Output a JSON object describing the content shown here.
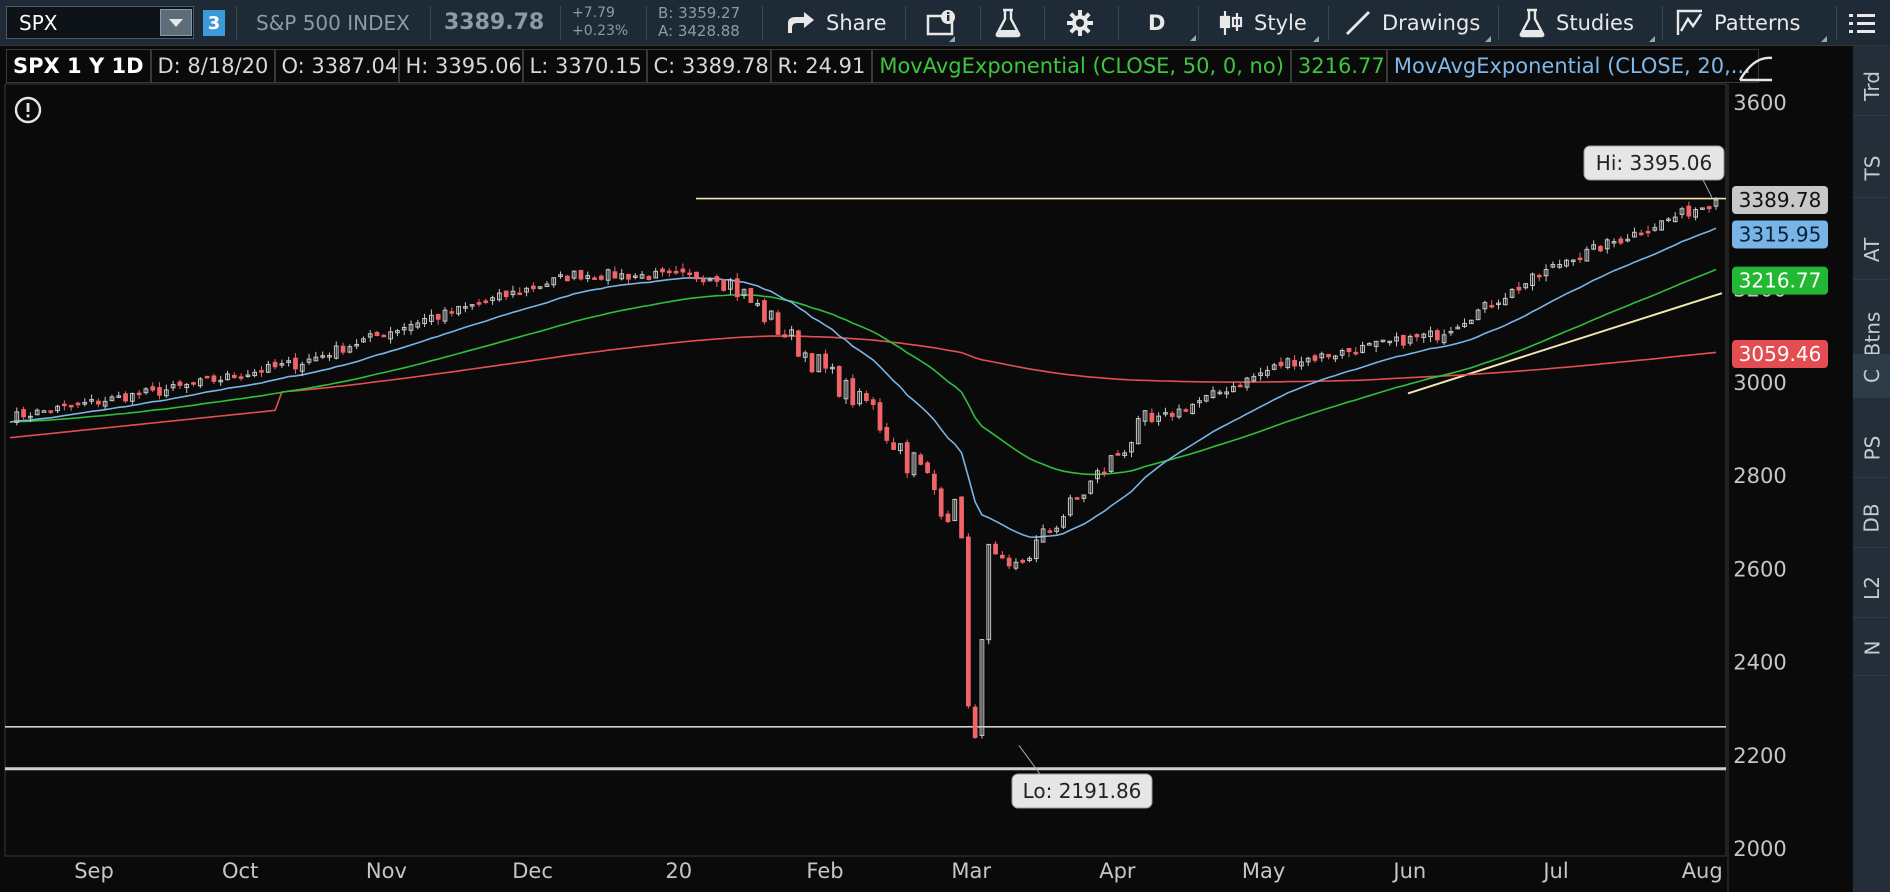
{
  "toolbar": {
    "symbol": "SPX",
    "link_number": "3",
    "index_name": "S&P 500 INDEX",
    "last_price": "3389.78",
    "change": "+7.79",
    "change_pct": "+0.23%",
    "bid": "B: 3359.27",
    "ask": "A: 3428.88",
    "share_label": "Share",
    "aggregation_label": "D",
    "style_label": "Style",
    "drawings_label": "Drawings",
    "studies_label": "Studies",
    "patterns_label": "Patterns"
  },
  "info_bar": {
    "symbol_period": "SPX 1 Y 1D",
    "date": "D: 8/18/20",
    "open": "O: 3387.04",
    "high": "H: 3395.06",
    "low": "L: 3370.15",
    "close": "C: 3389.78",
    "range": "R: 24.91",
    "ema50_label": "MovAvgExponential (CLOSE, 50, 0, no)",
    "ema50_value": "3216.77",
    "ema20_label": "MovAvgExponential (CLOSE, 20,..."
  },
  "side_tabs": [
    "Trd",
    "TS",
    "AT",
    "Btns",
    "C",
    "PS",
    "DB",
    "L2",
    "N"
  ],
  "colors": {
    "up": "#c8c8c8",
    "down": "#f06468",
    "ema20": "#79b4e6",
    "ema50": "#2fbf3a",
    "sma200": "#e05050",
    "trendline": "#f2e6b0",
    "support": "#cfcfcf"
  },
  "chart_data": {
    "type": "candlestick",
    "x_labels": [
      "Sep",
      "Oct",
      "Nov",
      "Dec",
      "20",
      "Feb",
      "Mar",
      "Apr",
      "May",
      "Jun",
      "Jul",
      "Aug"
    ],
    "y_ticks": [
      2000,
      2200,
      2400,
      2600,
      2800,
      3000,
      3200,
      3600
    ],
    "ylim": [
      2000,
      3650
    ],
    "months": [
      {
        "label": "Sep",
        "start": 2924,
        "end": 2976
      },
      {
        "label": "Oct",
        "start": 2976,
        "end": 3037
      },
      {
        "label": "Nov",
        "start": 3037,
        "end": 3140
      },
      {
        "label": "Dec",
        "start": 3140,
        "end": 3230
      },
      {
        "label": "20",
        "start": 3230,
        "end": 3225
      },
      {
        "label": "Feb",
        "start": 3225,
        "end": 2954
      },
      {
        "label": "Mar",
        "start": 2954,
        "end": 2584
      },
      {
        "label": "Apr",
        "start": 2584,
        "end": 2912
      },
      {
        "label": "May",
        "start": 2912,
        "end": 3044
      },
      {
        "label": "Jun",
        "start": 3044,
        "end": 3100
      },
      {
        "label": "Jul",
        "start": 3100,
        "end": 3271
      },
      {
        "label": "Aug",
        "start": 3271,
        "end": 3389
      }
    ],
    "high_label": "Hi: 3395.06",
    "low_label": "Lo: 2191.86",
    "price_labels": [
      {
        "name": "last",
        "value": 3389.78,
        "text": "3389.78",
        "bg": "#c8c8c8",
        "fg": "#111111"
      },
      {
        "name": "ema20",
        "value": 3315.95,
        "text": "3315.95",
        "bg": "#79b4e6",
        "fg": "#0a2238"
      },
      {
        "name": "ema50",
        "value": 3216.77,
        "text": "3216.77",
        "bg": "#22b833",
        "fg": "#ffffff"
      },
      {
        "name": "sma200",
        "value": 3059.46,
        "text": "3059.46",
        "bg": "#e34c50",
        "fg": "#ffffff"
      }
    ],
    "resistance_level": 3393,
    "support_levels": [
      2260,
      2170
    ],
    "series": [
      {
        "name": "MovAvgExponential (CLOSE, 50, 0, no)"
      },
      {
        "name": "MovAvgExponential (CLOSE, 20,..."
      }
    ]
  }
}
